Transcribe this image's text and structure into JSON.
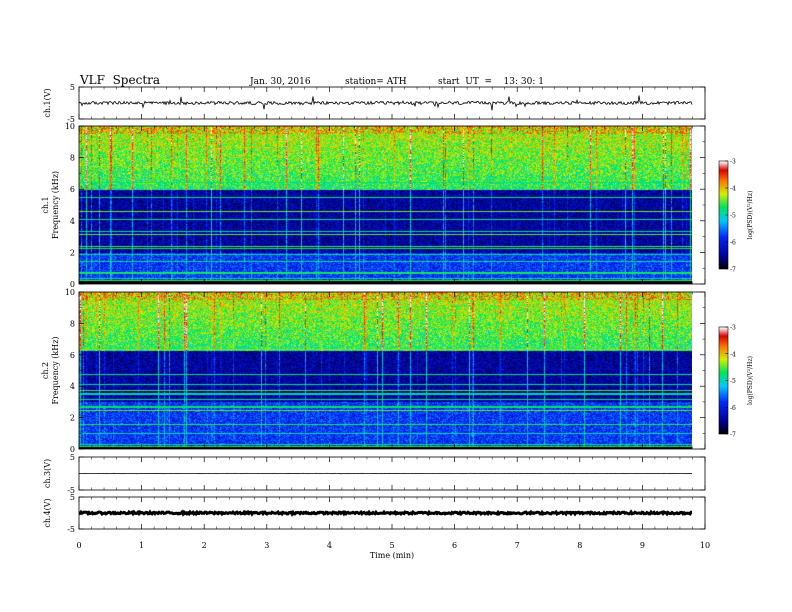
{
  "header": {
    "title": "VLF  Spectra",
    "date": "Jan. 30, 2016",
    "station": "station= ATH",
    "start": "start  UT  =    13: 30: 1"
  },
  "chart_data": [
    {
      "type": "line",
      "name": "ch1-waveform",
      "ylabel": "ch.1(V)",
      "ylim": [
        -5,
        5
      ],
      "y_ticks": [
        "5",
        "-5"
      ],
      "baseline": 0,
      "noise_amplitude": 0.5,
      "spike_amplitude": 2.5
    },
    {
      "type": "heatmap",
      "name": "ch1-spectrogram",
      "ylabel": "ch.1\nFrequency  (kHz)",
      "ylim": [
        0,
        10
      ],
      "y_ticks": [
        "0",
        "2",
        "4",
        "6",
        "8",
        "10"
      ],
      "xlim": [
        0,
        10
      ],
      "bands": [
        {
          "from_khz": 6,
          "to_khz": 10,
          "level": "-4 to -5"
        },
        {
          "from_khz": 2,
          "to_khz": 6,
          "level": "-6 to -7"
        },
        {
          "from_khz": 0,
          "to_khz": 2,
          "level": "-5 to -6"
        }
      ],
      "colorbar": {
        "label": "log(PSD)(V²/Hz)",
        "ticks": [
          "-3",
          "-4",
          "-5",
          "-6",
          "-7"
        ],
        "range": [
          -7,
          -3
        ]
      }
    },
    {
      "type": "heatmap",
      "name": "ch2-spectrogram",
      "ylabel": "ch.2\nFrequency  (kHz)",
      "ylim": [
        0,
        10
      ],
      "y_ticks": [
        "0",
        "2",
        "4",
        "6",
        "8",
        "10"
      ],
      "xlim": [
        0,
        10
      ],
      "bands": [
        {
          "from_khz": 6.3,
          "to_khz": 10,
          "level": "-4 to -5"
        },
        {
          "from_khz": 3,
          "to_khz": 6.3,
          "level": "-6 to -7"
        },
        {
          "from_khz": 0,
          "to_khz": 3,
          "level": "-5 to -6"
        }
      ],
      "colorbar": {
        "label": "log(PSD)(V²/Hz)",
        "ticks": [
          "-3",
          "-4",
          "-5",
          "-6",
          "-7"
        ],
        "range": [
          -7,
          -3
        ]
      }
    },
    {
      "type": "line",
      "name": "ch3-waveform",
      "ylabel": "ch.3(V)",
      "ylim": [
        -5,
        5
      ],
      "y_ticks": [
        "5",
        "-5"
      ],
      "baseline": 0,
      "noise_amplitude": 0.05,
      "spike_amplitude": 0
    },
    {
      "type": "line",
      "name": "ch4-waveform",
      "ylabel": "ch.4(V)",
      "ylim": [
        -5,
        5
      ],
      "y_ticks": [
        "5",
        "-5"
      ],
      "baseline": 0,
      "noise_amplitude": 0.3,
      "spike_amplitude": 0
    }
  ],
  "x_axis": {
    "label": "Time  (min)",
    "ticks": [
      "0",
      "1",
      "2",
      "3",
      "4",
      "5",
      "6",
      "7",
      "8",
      "9",
      "10"
    ],
    "range": [
      0,
      10
    ],
    "data_end": 9.8
  }
}
